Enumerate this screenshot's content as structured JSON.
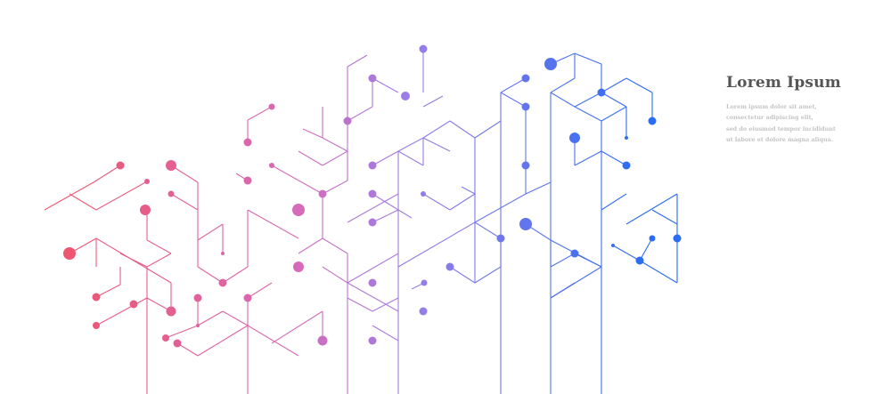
{
  "heading": "Lorem Ipsum",
  "body_lines": [
    "Lorem ipsum dolor sit amet,",
    "consectetur adipiscing elit,",
    "sed do eiusmod tempor incididunt",
    "ut labore et dolore magna aliqua."
  ],
  "stock_id": "775694045",
  "colors": {
    "gradient_start": "#f0556a",
    "gradient_mid1": "#d86ab8",
    "gradient_mid2": "#9a7ee8",
    "gradient_end": "#2a6cf2",
    "heading": "#555555",
    "body_text": "#c4c4c4"
  }
}
